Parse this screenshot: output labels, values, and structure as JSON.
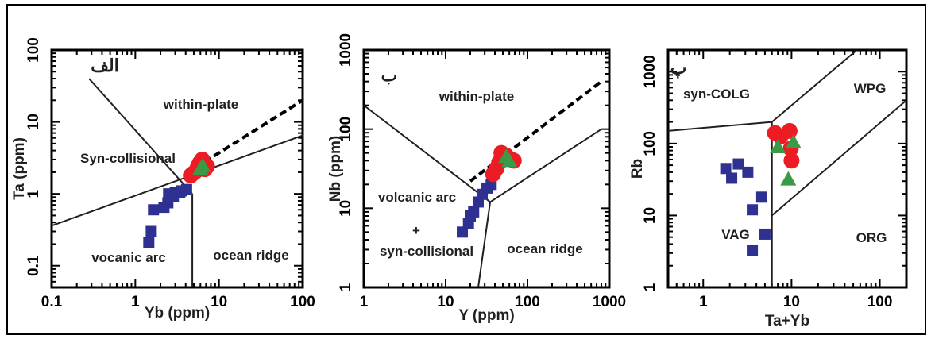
{
  "colors": {
    "square": "#2e3192",
    "circle": "#ed1c24",
    "triangle": "#3a9a46",
    "line": "#231f20",
    "axis": "#000000"
  },
  "chart_data": [
    {
      "type": "scatter",
      "panel_label": "الف",
      "xlabel": "Yb (ppm)",
      "ylabel": "Ta (ppm)",
      "xscale": "log",
      "yscale": "log",
      "xlim": [
        0.1,
        100
      ],
      "ylim": [
        0.05,
        100
      ],
      "x_ticks": [
        "0.1",
        "1",
        "10",
        "100"
      ],
      "y_ticks": [
        "0.1",
        "1",
        "10",
        "100"
      ],
      "field_labels": [
        "within-plate",
        "Syn-collisional",
        "vocanic arc",
        "ocean ridge"
      ],
      "boundaries": [
        {
          "points": [
            [
              0.28,
              40
            ],
            [
              4.8,
              1.0
            ]
          ]
        },
        {
          "points": [
            [
              0.1,
              0.36
            ],
            [
              100,
              6.5
            ]
          ]
        },
        {
          "points": [
            [
              4.8,
              1.0
            ],
            [
              4.8,
              0.05
            ]
          ]
        }
      ],
      "trend_line": {
        "points": [
          [
            5.2,
            2.3
          ],
          [
            100,
            20
          ]
        ],
        "style": "dashed"
      },
      "series": [
        {
          "marker": "square",
          "points": [
            [
              1.45,
              0.21
            ],
            [
              1.55,
              0.3
            ],
            [
              1.65,
              0.6
            ],
            [
              2.2,
              0.65
            ],
            [
              2.45,
              0.75
            ],
            [
              2.5,
              1.0
            ],
            [
              2.85,
              0.92
            ],
            [
              3.0,
              1.05
            ],
            [
              3.4,
              1.05
            ],
            [
              3.6,
              1.1
            ],
            [
              4.1,
              1.15
            ]
          ]
        },
        {
          "marker": "circle",
          "points": [
            [
              4.6,
              1.8
            ],
            [
              5.0,
              1.95
            ],
            [
              5.4,
              2.1
            ],
            [
              5.6,
              2.4
            ],
            [
              5.9,
              2.7
            ],
            [
              6.3,
              3.0
            ],
            [
              7.2,
              2.4
            ],
            [
              6.8,
              2.2
            ]
          ]
        },
        {
          "marker": "triangle",
          "points": [
            [
              6.0,
              2.25
            ],
            [
              6.4,
              2.45
            ]
          ]
        }
      ]
    },
    {
      "type": "scatter",
      "panel_label": "ب",
      "xlabel": "Y (ppm)",
      "ylabel": "Nb (ppm)",
      "xscale": "log",
      "yscale": "log",
      "xlim": [
        1,
        1000
      ],
      "ylim": [
        1,
        1000
      ],
      "x_ticks": [
        "1",
        "10",
        "100",
        "1000"
      ],
      "y_ticks": [
        "1",
        "10",
        "100",
        "1000"
      ],
      "field_labels": [
        "within-plate",
        "volcanic arc",
        "+",
        "syn-collisional",
        "ocean ridge"
      ],
      "boundaries": [
        {
          "points": [
            [
              1,
              200
            ],
            [
              35,
              12
            ]
          ]
        },
        {
          "points": [
            [
              35,
              12
            ],
            [
              800,
              100
            ]
          ]
        },
        {
          "points": [
            [
              35,
              12
            ],
            [
              25,
              1
            ]
          ]
        }
      ],
      "trend_line": {
        "points": [
          [
            20,
            22
          ],
          [
            800,
            400
          ]
        ],
        "style": "dashed"
      },
      "series": [
        {
          "marker": "square",
          "points": [
            [
              16,
              5
            ],
            [
              19,
              6.5
            ],
            [
              20,
              8
            ],
            [
              22,
              9
            ],
            [
              25,
              12
            ],
            [
              28,
              15
            ],
            [
              32,
              18
            ],
            [
              36,
              20
            ]
          ]
        },
        {
          "marker": "circle",
          "points": [
            [
              38,
              27
            ],
            [
              42,
              32
            ],
            [
              45,
              38
            ],
            [
              48,
              50
            ],
            [
              55,
              46
            ],
            [
              62,
              42
            ],
            [
              68,
              40
            ]
          ]
        },
        {
          "marker": "triangle",
          "points": [
            [
              55,
              45
            ],
            [
              60,
              40
            ]
          ]
        }
      ]
    },
    {
      "type": "scatter",
      "panel_label": "پ",
      "xlabel": "Ta+Yb",
      "ylabel": "Rb",
      "xscale": "log",
      "yscale": "log",
      "xlim": [
        0.4,
        200
      ],
      "ylim": [
        1,
        2000
      ],
      "x_ticks": [
        "1",
        "10",
        "100"
      ],
      "y_ticks": [
        "1",
        "10",
        "100",
        "1000"
      ],
      "field_labels": [
        "syn-COLG",
        "WPG",
        "VAG",
        "ORG"
      ],
      "boundaries": [
        {
          "points": [
            [
              0.4,
              150
            ],
            [
              6,
              200
            ]
          ]
        },
        {
          "points": [
            [
              6,
              200
            ],
            [
              55,
              2000
            ]
          ]
        },
        {
          "points": [
            [
              6,
              1
            ],
            [
              6,
              200
            ]
          ]
        },
        {
          "points": [
            [
              6,
              10
            ],
            [
              200,
              400
            ]
          ]
        }
      ],
      "series": [
        {
          "marker": "square",
          "points": [
            [
              1.8,
              45
            ],
            [
              2.1,
              33
            ],
            [
              2.5,
              52
            ],
            [
              3.2,
              40
            ],
            [
              3.6,
              12
            ],
            [
              3.6,
              3.3
            ],
            [
              4.6,
              18
            ],
            [
              5.0,
              5.5
            ]
          ]
        },
        {
          "marker": "circle",
          "points": [
            [
              6.5,
              140
            ],
            [
              7.5,
              125
            ],
            [
              9.5,
              150
            ],
            [
              9.8,
              85
            ],
            [
              10.0,
              58
            ]
          ]
        },
        {
          "marker": "triangle",
          "points": [
            [
              7.0,
              90
            ],
            [
              10.5,
              105
            ],
            [
              9.2,
              32
            ]
          ]
        }
      ]
    }
  ]
}
